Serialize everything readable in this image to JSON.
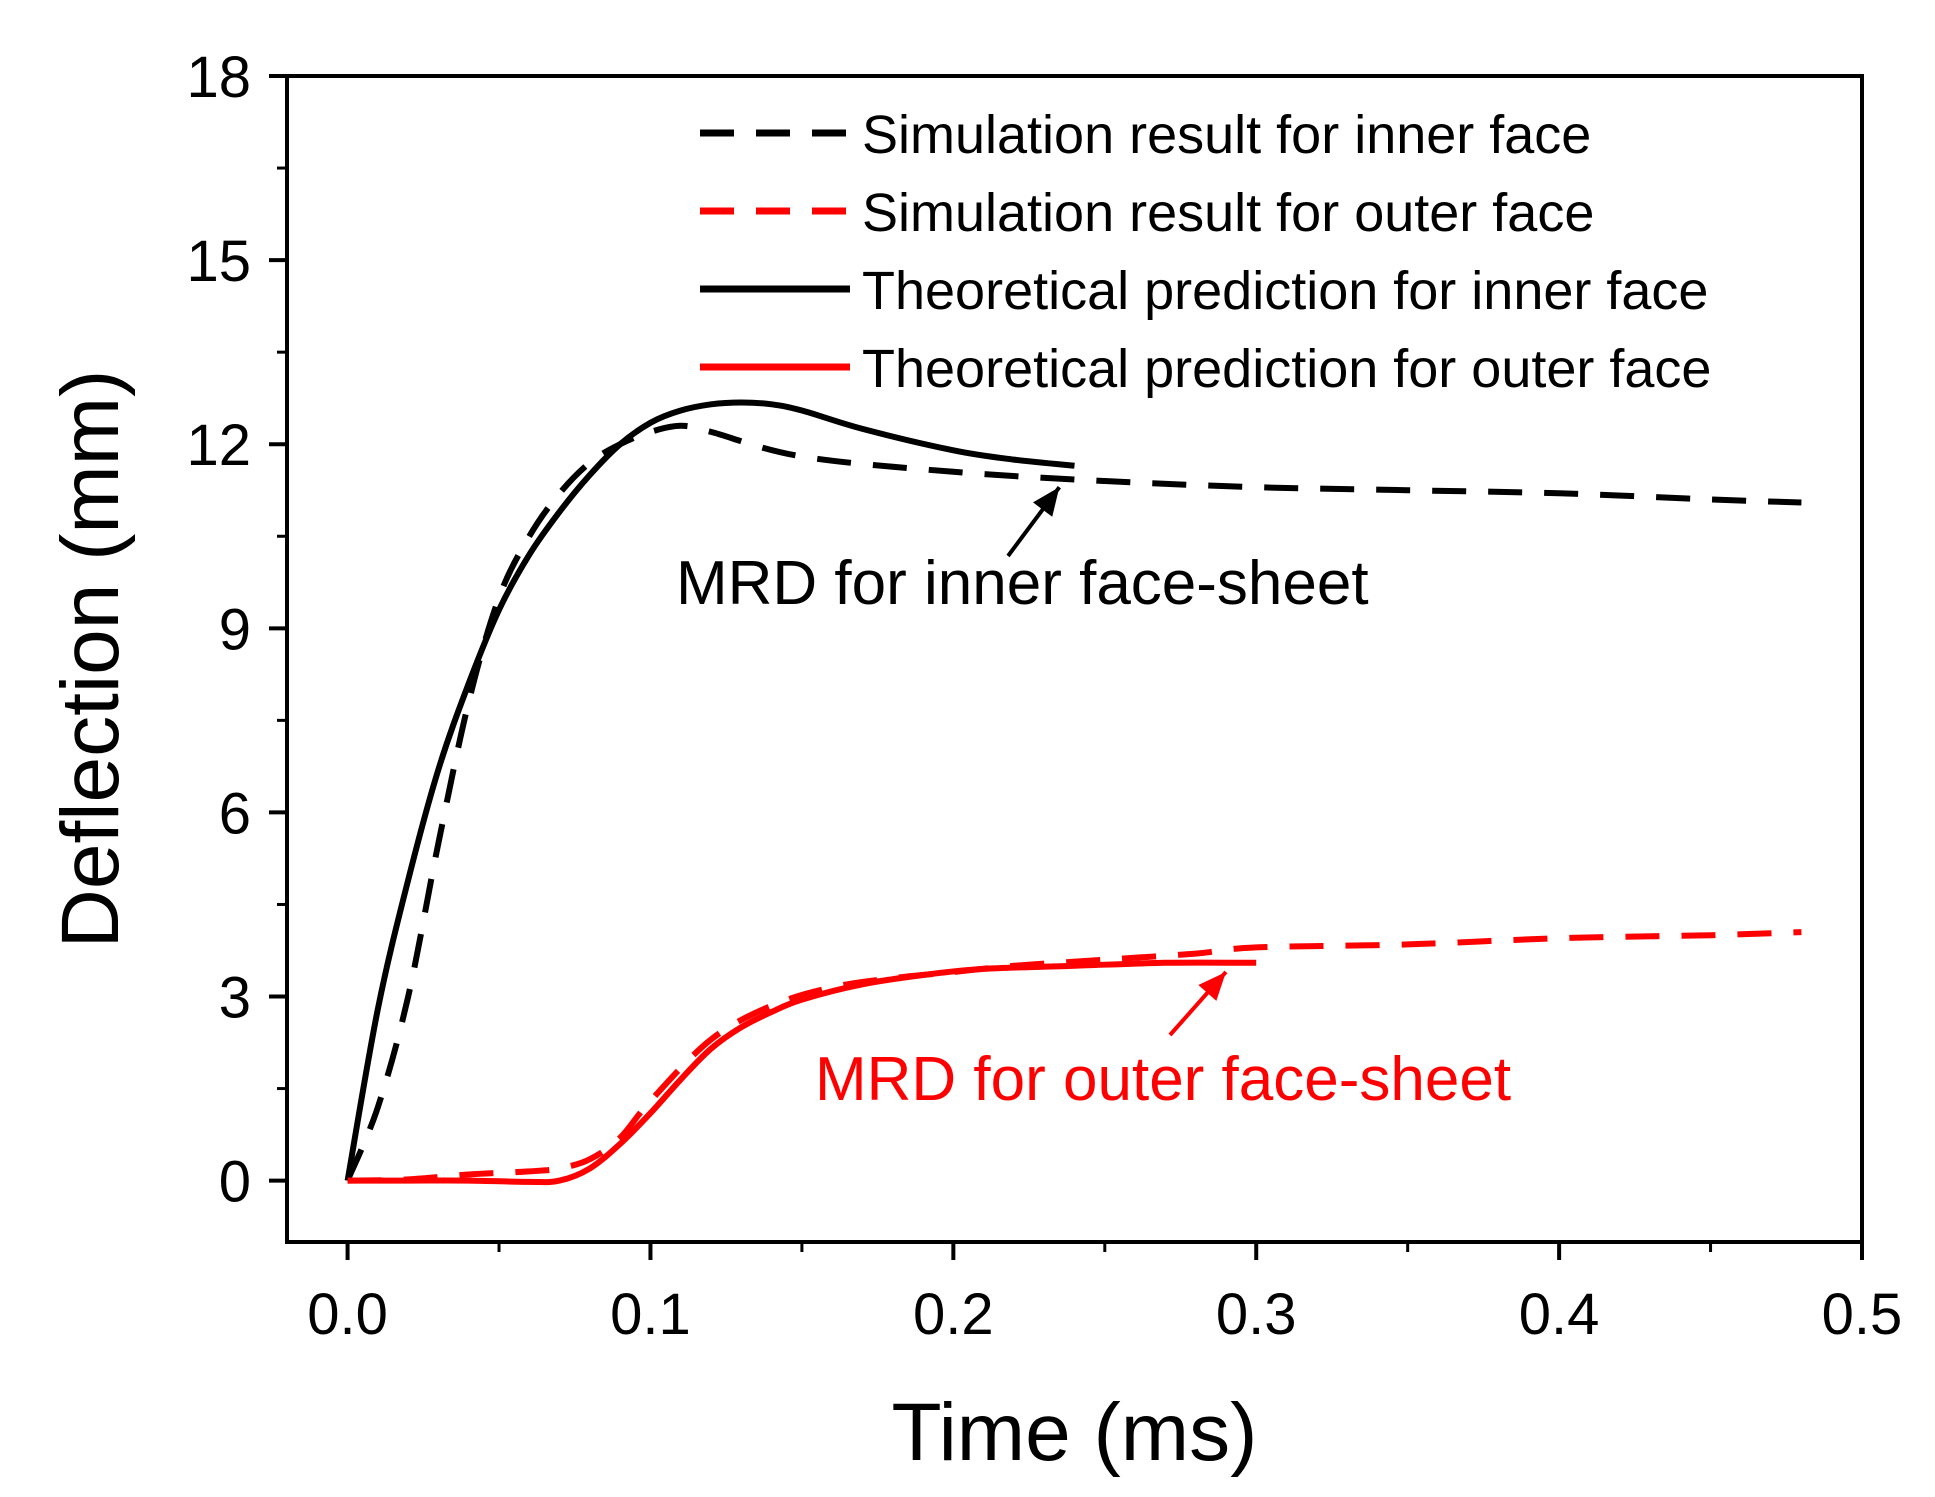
{
  "chart_data": {
    "type": "line",
    "title": "",
    "xlabel": "Time (ms)",
    "ylabel": "Deflection (mm)",
    "xlim": [
      -0.02,
      0.5
    ],
    "ylim": [
      -1,
      18
    ],
    "xticks": [
      0.0,
      0.1,
      0.2,
      0.3,
      0.4,
      0.5
    ],
    "xtick_labels": [
      "0.0",
      "0.1",
      "0.2",
      "0.3",
      "0.4",
      "0.5"
    ],
    "yticks": [
      0,
      3,
      6,
      9,
      12,
      15,
      18
    ],
    "ytick_labels": [
      "0",
      "3",
      "6",
      "9",
      "12",
      "15",
      "18"
    ],
    "grid": false,
    "legend_position": "top-right",
    "series": [
      {
        "name": "Simulation result for inner face",
        "color": "#000000",
        "style": "dashed",
        "x": [
          0.0,
          0.01,
          0.02,
          0.03,
          0.04,
          0.05,
          0.06,
          0.07,
          0.08,
          0.09,
          0.1,
          0.11,
          0.12,
          0.15,
          0.2,
          0.25,
          0.3,
          0.35,
          0.4,
          0.45,
          0.48
        ],
        "y": [
          0.0,
          1.2,
          3.0,
          5.5,
          7.8,
          9.5,
          10.5,
          11.2,
          11.7,
          12.0,
          12.2,
          12.3,
          12.2,
          11.8,
          11.55,
          11.4,
          11.3,
          11.25,
          11.2,
          11.1,
          11.05
        ]
      },
      {
        "name": "Simulation result for outer face",
        "color": "#ff0000",
        "style": "dashed",
        "x": [
          0.0,
          0.02,
          0.04,
          0.06,
          0.07,
          0.08,
          0.09,
          0.1,
          0.12,
          0.14,
          0.16,
          0.18,
          0.2,
          0.22,
          0.25,
          0.28,
          0.3,
          0.35,
          0.4,
          0.45,
          0.48
        ],
        "y": [
          0.0,
          0.02,
          0.1,
          0.15,
          0.2,
          0.35,
          0.7,
          1.3,
          2.3,
          2.85,
          3.15,
          3.3,
          3.4,
          3.5,
          3.6,
          3.7,
          3.8,
          3.85,
          3.95,
          4.0,
          4.05
        ]
      },
      {
        "name": "Theoretical prediction for inner face",
        "color": "#000000",
        "style": "solid",
        "x": [
          0.0,
          0.01,
          0.02,
          0.03,
          0.04,
          0.05,
          0.06,
          0.07,
          0.08,
          0.09,
          0.1,
          0.11,
          0.12,
          0.13,
          0.14,
          0.15,
          0.17,
          0.2,
          0.22,
          0.24
        ],
        "y": [
          0.0,
          2.8,
          4.9,
          6.7,
          8.1,
          9.3,
          10.2,
          10.9,
          11.5,
          12.0,
          12.35,
          12.55,
          12.65,
          12.68,
          12.65,
          12.55,
          12.25,
          11.9,
          11.75,
          11.65
        ]
      },
      {
        "name": "Theoretical prediction for outer face",
        "color": "#ff0000",
        "style": "solid",
        "x": [
          0.0,
          0.02,
          0.04,
          0.06,
          0.07,
          0.08,
          0.09,
          0.1,
          0.11,
          0.12,
          0.13,
          0.14,
          0.15,
          0.17,
          0.19,
          0.21,
          0.24,
          0.27,
          0.3
        ],
        "y": [
          0.0,
          0.0,
          0.0,
          -0.02,
          0.0,
          0.2,
          0.6,
          1.1,
          1.65,
          2.15,
          2.5,
          2.75,
          2.95,
          3.2,
          3.35,
          3.45,
          3.5,
          3.55,
          3.55
        ]
      }
    ],
    "annotations": [
      {
        "text": "MRD for inner face-sheet",
        "color": "#000000",
        "arrow_to": [
          0.235,
          11.3
        ]
      },
      {
        "text": "MRD for outer face-sheet",
        "color": "#ff0000",
        "arrow_to": [
          0.29,
          3.4
        ]
      }
    ]
  }
}
